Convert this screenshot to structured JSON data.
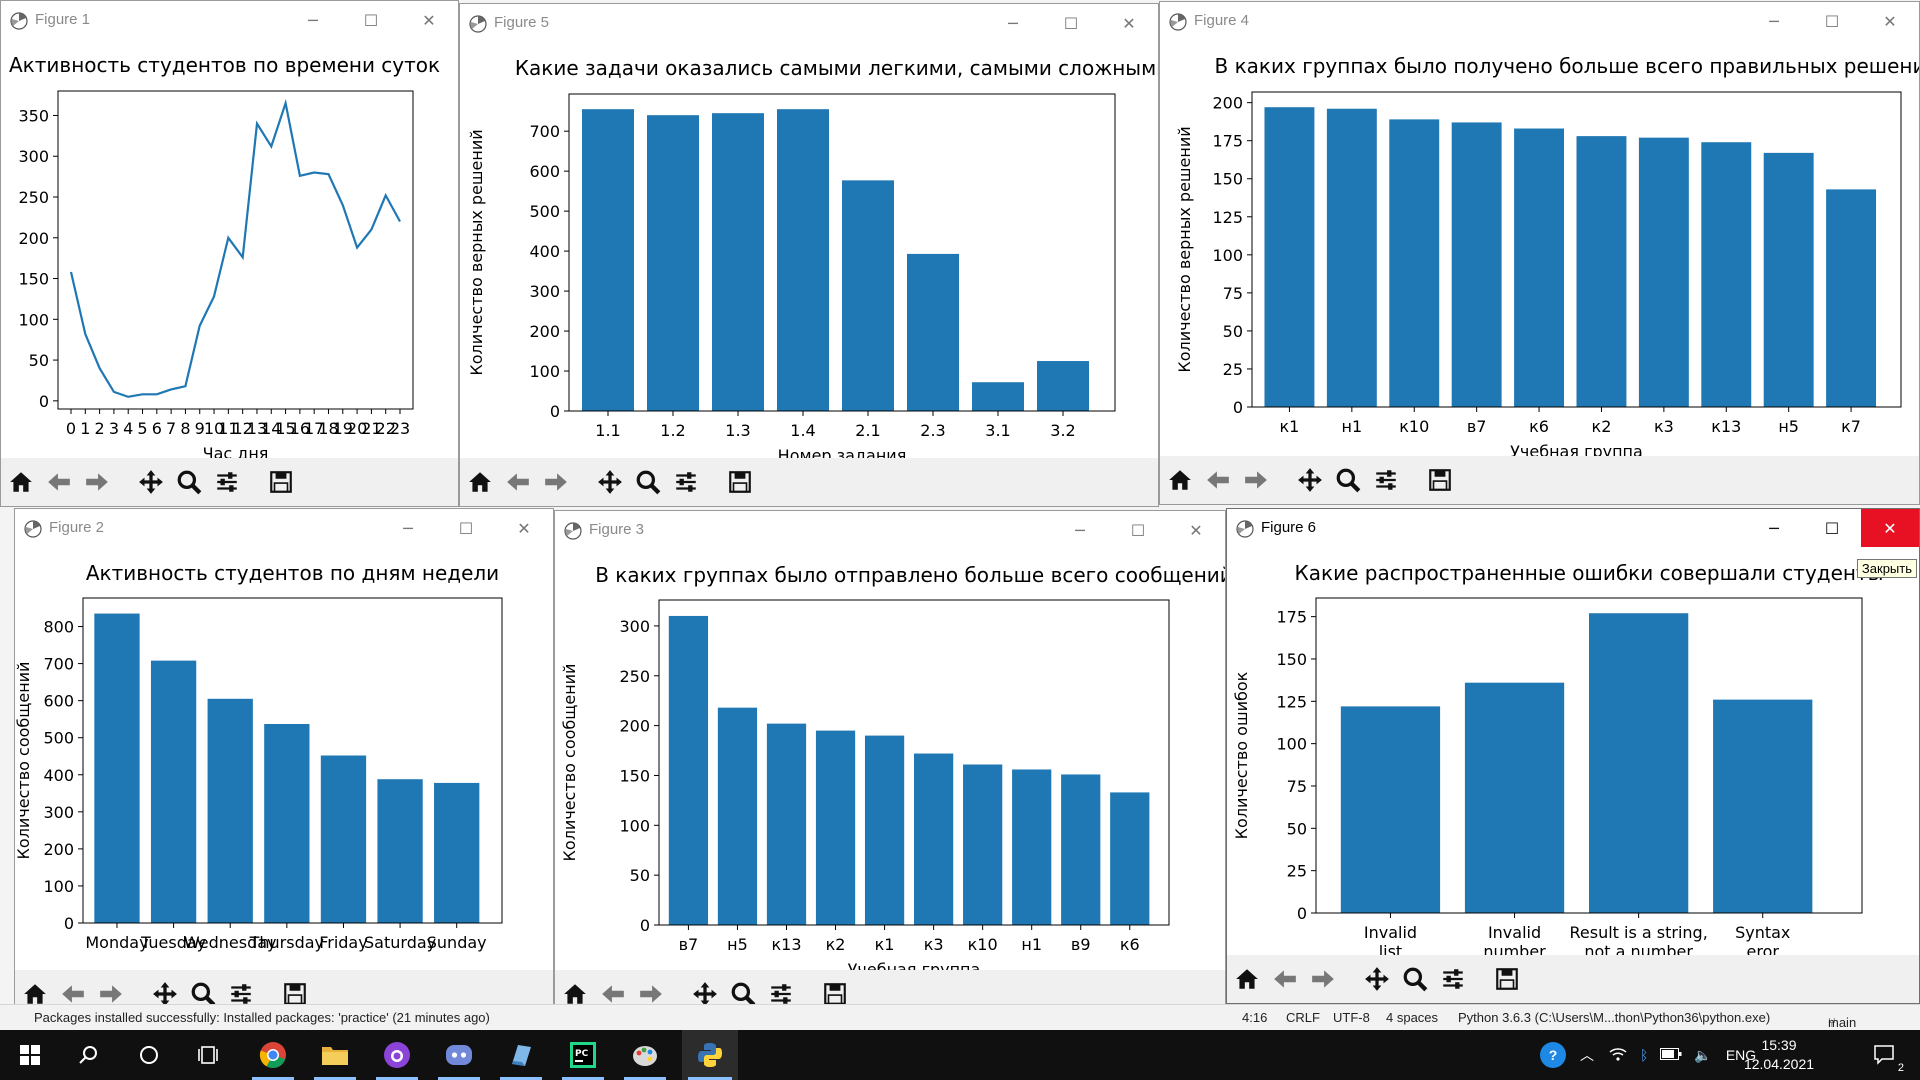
{
  "colors": {
    "bar": "#1f77b4",
    "line": "#1f77b4",
    "close_hover": "#e81123"
  },
  "figures": [
    {
      "id": "fig1",
      "window_title": "Figure 1",
      "chart_data": {
        "type": "line",
        "title": "Активность студентов по времени суток",
        "xlabel": "Час дня",
        "ylabel": "",
        "x": [
          0,
          1,
          2,
          3,
          4,
          5,
          6,
          7,
          8,
          9,
          10,
          11,
          12,
          13,
          14,
          15,
          16,
          17,
          18,
          19,
          20,
          21,
          22,
          23
        ],
        "values": [
          158,
          82,
          40,
          11,
          5,
          8,
          8,
          14,
          18,
          92,
          128,
          200,
          176,
          340,
          312,
          365,
          276,
          280,
          278,
          240,
          188,
          210,
          252,
          220
        ],
        "xtick_labels": [
          "0",
          "1",
          "2",
          "3",
          "4",
          "5",
          "6",
          "7",
          "8",
          "9",
          "10",
          "11",
          "12",
          "13",
          "14",
          "15",
          "16",
          "17",
          "18",
          "19",
          "20",
          "21",
          "22",
          "23"
        ],
        "ylim": [
          -10,
          380
        ],
        "yticks": [
          0,
          50,
          100,
          150,
          200,
          250,
          300,
          350
        ]
      }
    },
    {
      "id": "fig5",
      "window_title": "Figure 5",
      "chart_data": {
        "type": "bar",
        "title": "Какие задачи оказались самыми легкими, самыми сложными",
        "xlabel": "Номер задания",
        "ylabel": "Количество верных решений",
        "categories": [
          "1.1",
          "1.2",
          "1.3",
          "1.4",
          "2.1",
          "2.3",
          "3.1",
          "3.2"
        ],
        "values": [
          755,
          740,
          745,
          755,
          577,
          393,
          72,
          125
        ],
        "ylim": [
          0,
          793
        ],
        "yticks": [
          0,
          100,
          200,
          300,
          400,
          500,
          600,
          700
        ]
      }
    },
    {
      "id": "fig4",
      "window_title": "Figure 4",
      "chart_data": {
        "type": "bar",
        "title": "В каких группах было получено больше всего правильных решений",
        "xlabel": "Учебная группа",
        "ylabel": "Количество верных решений",
        "categories": [
          "к1",
          "н1",
          "к10",
          "в7",
          "к6",
          "к2",
          "к3",
          "к13",
          "н5",
          "к7"
        ],
        "values": [
          197,
          196,
          189,
          187,
          183,
          178,
          177,
          174,
          167,
          143
        ],
        "ylim": [
          0,
          207
        ],
        "yticks": [
          0,
          25,
          50,
          75,
          100,
          125,
          150,
          175,
          200
        ]
      }
    },
    {
      "id": "fig2",
      "window_title": "Figure 2",
      "chart_data": {
        "type": "bar",
        "title": "Активность студентов по дням недели",
        "xlabel": "",
        "ylabel": "Количество сообщений",
        "categories": [
          "Monday",
          "Tuesday",
          "Wednesday",
          "Thursday",
          "Friday",
          "Saturday",
          "Sunday"
        ],
        "values": [
          835,
          708,
          605,
          537,
          452,
          388,
          378
        ],
        "ylim": [
          0,
          877
        ],
        "yticks": [
          0,
          100,
          200,
          300,
          400,
          500,
          600,
          700,
          800
        ]
      }
    },
    {
      "id": "fig3",
      "window_title": "Figure 3",
      "chart_data": {
        "type": "bar",
        "title": "В каких группах было отправлено больше всего сообщений",
        "xlabel": "Учебная группа",
        "ylabel": "Количество сообщений",
        "categories": [
          "в7",
          "н5",
          "к13",
          "к2",
          "к1",
          "к3",
          "к10",
          "н1",
          "в9",
          "к6"
        ],
        "values": [
          310,
          218,
          202,
          195,
          190,
          172,
          161,
          156,
          151,
          133
        ],
        "ylim": [
          0,
          326
        ],
        "yticks": [
          0,
          50,
          100,
          150,
          200,
          250,
          300
        ]
      }
    },
    {
      "id": "fig6",
      "window_title": "Figure 6",
      "chart_data": {
        "type": "bar",
        "title": "Какие распространенные ошибки совершали студенты",
        "xlabel": "",
        "ylabel": "Количество ошибок",
        "categories": [
          "Invalid\nlist",
          "Invalid\nnumber",
          "Result is a string,\nnot a number",
          "Syntax\neror"
        ],
        "values": [
          122,
          136,
          177,
          126
        ],
        "ylim": [
          0,
          186
        ],
        "yticks": [
          0,
          25,
          50,
          75,
          100,
          125,
          150,
          175
        ]
      },
      "tooltip": "Закрыть"
    }
  ],
  "statusbar": {
    "message": "Packages installed successfully: Installed packages: 'practice' (21 minutes ago)",
    "position": "4:16",
    "line_sep": "CRLF",
    "encoding": "UTF-8",
    "indent": "4 spaces",
    "interpreter": "Python 3.6.3 (C:\\Users\\M...thon\\Python36\\python.exe)",
    "branch": "main"
  },
  "taskbar": {
    "apps": [
      "start-icon",
      "search-icon",
      "cortana-icon",
      "task-view-icon",
      "chrome-icon",
      "explorer-icon",
      "github-desktop-icon",
      "discord-icon",
      "notes-icon",
      "pycharm-icon",
      "paint-icon",
      "python-icon"
    ],
    "language": "ENG",
    "time": "15:39",
    "date": "12.04.2021",
    "notifications": "2"
  }
}
